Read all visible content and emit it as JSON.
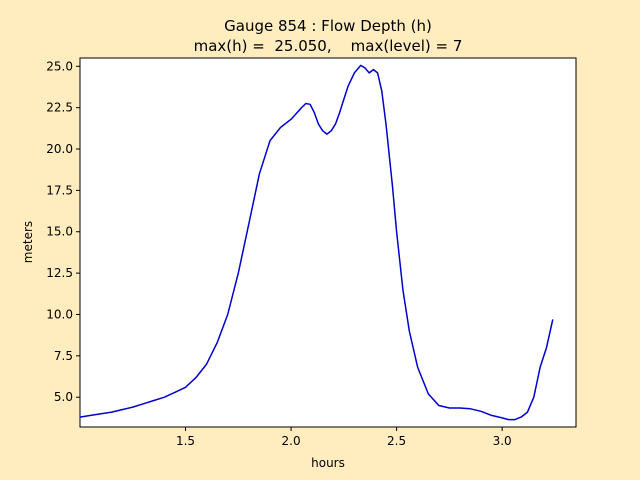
{
  "chart_data": {
    "type": "line",
    "title_line1": "Gauge 854 : Flow Depth (h)",
    "title_line2": "max(h) =  25.050,    max(level) = 7",
    "xlabel": "hours",
    "ylabel": "meters",
    "xlim": [
      1.0,
      3.35
    ],
    "ylim": [
      3.2,
      25.5
    ],
    "xticks": [
      1.5,
      2.0,
      2.5,
      3.0
    ],
    "xtick_labels": [
      "1.5",
      "2.0",
      "2.5",
      "3.0"
    ],
    "yticks": [
      5.0,
      7.5,
      10.0,
      12.5,
      15.0,
      17.5,
      20.0,
      22.5,
      25.0
    ],
    "ytick_labels": [
      "5.0",
      "7.5",
      "10.0",
      "12.5",
      "15.0",
      "17.5",
      "20.0",
      "22.5",
      "25.0"
    ],
    "grid": false,
    "colors": {
      "figure_bg": "#ffedc0",
      "axes_bg": "#ffffff",
      "line": "#0000cc"
    },
    "series": [
      {
        "x": [
          1.0,
          1.05,
          1.1,
          1.15,
          1.2,
          1.25,
          1.3,
          1.35,
          1.4,
          1.45,
          1.5,
          1.55,
          1.6,
          1.65,
          1.7,
          1.75,
          1.8,
          1.85,
          1.9,
          1.95,
          2.0,
          2.05,
          2.07,
          2.09,
          2.11,
          2.13,
          2.15,
          2.17,
          2.19,
          2.21,
          2.23,
          2.25,
          2.27,
          2.3,
          2.33,
          2.35,
          2.37,
          2.39,
          2.41,
          2.43,
          2.45,
          2.48,
          2.5,
          2.53,
          2.56,
          2.6,
          2.65,
          2.7,
          2.75,
          2.8,
          2.85,
          2.9,
          2.95,
          3.0,
          3.03,
          3.06,
          3.09,
          3.12,
          3.15,
          3.18,
          3.21,
          3.24
        ],
        "y": [
          3.8,
          3.9,
          4.0,
          4.1,
          4.25,
          4.4,
          4.6,
          4.8,
          5.0,
          5.3,
          5.6,
          6.2,
          7.0,
          8.3,
          10.0,
          12.5,
          15.5,
          18.5,
          20.5,
          21.3,
          21.8,
          22.5,
          22.75,
          22.7,
          22.2,
          21.5,
          21.1,
          20.9,
          21.1,
          21.5,
          22.2,
          23.0,
          23.8,
          24.6,
          25.05,
          24.9,
          24.6,
          24.8,
          24.6,
          23.5,
          21.5,
          17.8,
          15.0,
          11.5,
          9.0,
          6.8,
          5.2,
          4.5,
          4.35,
          4.35,
          4.3,
          4.15,
          3.9,
          3.75,
          3.65,
          3.65,
          3.8,
          4.1,
          5.0,
          6.8,
          8.0,
          9.7
        ]
      }
    ]
  }
}
